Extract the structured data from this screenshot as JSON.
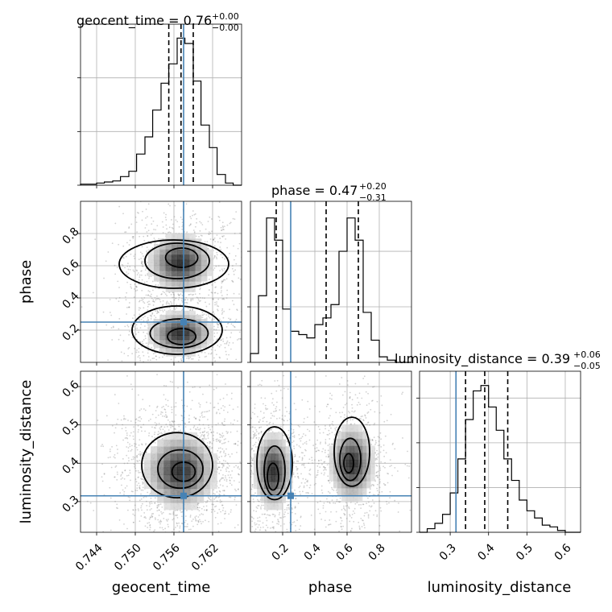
{
  "chart_data": {
    "type": "corner",
    "parameters": [
      "geocent_time",
      "phase",
      "luminosity_distance"
    ],
    "truths": {
      "geocent_time": 0.7575,
      "phase": 0.25,
      "luminosity_distance": 0.315
    },
    "colors": {
      "truth": "#4682b4",
      "hist": "#000000",
      "grid": "#b0b0b0",
      "points": "#7f7f7f"
    },
    "grid": true,
    "titles": [
      {
        "param": "geocent_time",
        "label": "geocent_time = 0.76",
        "plus": "+0.00",
        "minus": "−0.00"
      },
      {
        "param": "phase",
        "label": "phase = 0.47",
        "plus": "+0.20",
        "minus": "−0.31"
      },
      {
        "param": "luminosity_distance",
        "label": "luminosity_distance = 0.39",
        "plus": "+0.06",
        "minus": "−0.05"
      }
    ],
    "axes": {
      "geocent_time": {
        "range": [
          0.7415,
          0.7665
        ],
        "ticks": [
          "0.744",
          "0.750",
          "0.756",
          "0.762"
        ],
        "tick_values": [
          0.744,
          0.75,
          0.756,
          0.762
        ]
      },
      "phase": {
        "range": [
          0.0,
          1.0
        ],
        "ticks": [
          "0.2",
          "0.4",
          "0.6",
          "0.8"
        ],
        "tick_values": [
          0.2,
          0.4,
          0.6,
          0.8
        ]
      },
      "luminosity_distance": {
        "range": [
          0.22,
          0.64
        ],
        "ticks": [
          "0.3",
          "0.4",
          "0.5",
          "0.6"
        ],
        "tick_values": [
          0.3,
          0.4,
          0.5,
          0.6
        ]
      }
    },
    "diagonal_histograms": {
      "geocent_time": {
        "bins": [
          0.7415,
          0.744,
          0.7452,
          0.7465,
          0.7477,
          0.749,
          0.7502,
          0.7515,
          0.7527,
          0.754,
          0.7552,
          0.7565,
          0.7577,
          0.759,
          0.7602,
          0.7615,
          0.7627,
          0.764,
          0.7652,
          0.7665
        ],
        "counts": [
          1,
          2,
          3,
          4,
          8,
          13,
          29,
          45,
          70,
          95,
          113,
          137,
          132,
          97,
          56,
          35,
          10,
          2,
          0
        ],
        "quantiles": [
          0.7552,
          0.7571,
          0.759
        ],
        "ymax": 150,
        "yticks": [
          0,
          50,
          100
        ]
      },
      "phase": {
        "bins": [
          0.0,
          0.05,
          0.1,
          0.15,
          0.2,
          0.25,
          0.3,
          0.35,
          0.4,
          0.45,
          0.5,
          0.55,
          0.6,
          0.65,
          0.7,
          0.75,
          0.8,
          0.85,
          0.9,
          0.95,
          1.0
        ],
        "counts": [
          8,
          60,
          130,
          110,
          48,
          28,
          25,
          22,
          34,
          40,
          52,
          100,
          130,
          110,
          45,
          20,
          5,
          2,
          0,
          0
        ],
        "quantiles": [
          0.16,
          0.47,
          0.67
        ],
        "ymax": 145,
        "yticks": [
          0,
          50,
          100
        ]
      },
      "luminosity_distance": {
        "bins": [
          0.22,
          0.24,
          0.26,
          0.28,
          0.3,
          0.32,
          0.34,
          0.36,
          0.38,
          0.4,
          0.42,
          0.44,
          0.46,
          0.48,
          0.5,
          0.52,
          0.54,
          0.56,
          0.58,
          0.6,
          0.62,
          0.64
        ],
        "counts": [
          0,
          2,
          5,
          10,
          22,
          41,
          63,
          79,
          82,
          70,
          57,
          41,
          29,
          18,
          12,
          8,
          4,
          3,
          1,
          0,
          0
        ],
        "quantiles": [
          0.34,
          0.39,
          0.45
        ],
        "ymax": 90,
        "yticks": [
          0,
          25,
          50,
          75
        ]
      }
    },
    "density_blobs": {
      "phase_vs_geocent_time": [
        {
          "cx": 0.757,
          "cy": 0.62,
          "sx": 0.0025,
          "sy": 0.09,
          "w": 0.55
        },
        {
          "cx": 0.757,
          "cy": 0.18,
          "sx": 0.0025,
          "sy": 0.07,
          "w": 0.45
        }
      ],
      "luminosity_distance_vs_geocent_time": [
        {
          "cx": 0.757,
          "cy": 0.38,
          "sx": 0.0028,
          "sy": 0.05,
          "w": 1.0
        }
      ],
      "luminosity_distance_vs_phase": [
        {
          "cx": 0.14,
          "cy": 0.38,
          "sx": 0.06,
          "sy": 0.05,
          "w": 0.5
        },
        {
          "cx": 0.63,
          "cy": 0.4,
          "sx": 0.07,
          "sy": 0.05,
          "w": 0.5
        }
      ]
    },
    "contour_ellipses": {
      "phase_vs_geocent_time": [
        {
          "cx": 0.7572,
          "cy": 0.65,
          "rx": 0.0025,
          "ry": 0.06
        },
        {
          "cx": 0.7565,
          "cy": 0.63,
          "rx": 0.005,
          "ry": 0.11
        },
        {
          "cx": 0.756,
          "cy": 0.61,
          "rx": 0.0085,
          "ry": 0.15
        },
        {
          "cx": 0.7572,
          "cy": 0.16,
          "rx": 0.0022,
          "ry": 0.05
        },
        {
          "cx": 0.7568,
          "cy": 0.18,
          "rx": 0.0045,
          "ry": 0.09
        },
        {
          "cx": 0.7565,
          "cy": 0.2,
          "rx": 0.007,
          "ry": 0.15
        }
      ],
      "luminosity_distance_vs_geocent_time": [
        {
          "cx": 0.7575,
          "cy": 0.378,
          "rx": 0.0018,
          "ry": 0.025
        },
        {
          "cx": 0.757,
          "cy": 0.385,
          "rx": 0.0035,
          "ry": 0.05
        },
        {
          "cx": 0.7565,
          "cy": 0.395,
          "rx": 0.0055,
          "ry": 0.085
        }
      ],
      "luminosity_distance_vs_phase": [
        {
          "cx": 0.14,
          "cy": 0.365,
          "rx": 0.035,
          "ry": 0.035
        },
        {
          "cx": 0.15,
          "cy": 0.38,
          "rx": 0.065,
          "ry": 0.065
        },
        {
          "cx": 0.15,
          "cy": 0.4,
          "rx": 0.11,
          "ry": 0.095
        },
        {
          "cx": 0.61,
          "cy": 0.4,
          "rx": 0.03,
          "ry": 0.025
        },
        {
          "cx": 0.62,
          "cy": 0.41,
          "rx": 0.065,
          "ry": 0.055
        },
        {
          "cx": 0.63,
          "cy": 0.43,
          "rx": 0.11,
          "ry": 0.09
        }
      ]
    }
  }
}
